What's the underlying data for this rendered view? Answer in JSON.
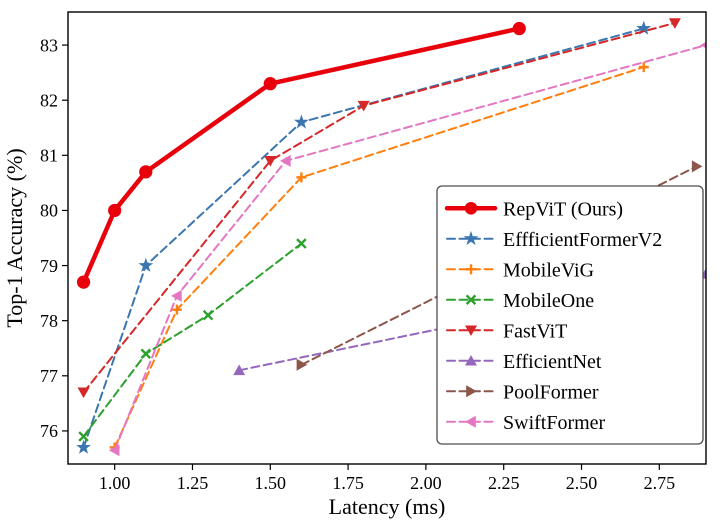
{
  "figure": {
    "xlabel": "Latency (ms)",
    "ylabel": "Top-1 Accuracy (%)"
  },
  "chart_data": {
    "type": "line",
    "title": "",
    "xlabel": "Latency (ms)",
    "ylabel": "Top-1 Accuracy (%)",
    "xlim": [
      0.85,
      2.9
    ],
    "ylim": [
      75.4,
      83.6
    ],
    "xticks": [
      1.0,
      1.25,
      1.5,
      1.75,
      2.0,
      2.25,
      2.5,
      2.75
    ],
    "xtick_labels": [
      "1.00",
      "1.25",
      "1.50",
      "1.75",
      "2.00",
      "2.25",
      "2.50",
      "2.75"
    ],
    "yticks": [
      76,
      77,
      78,
      79,
      80,
      81,
      82,
      83
    ],
    "ytick_labels": [
      "76",
      "77",
      "78",
      "79",
      "80",
      "81",
      "82",
      "83"
    ],
    "grid": false,
    "legend_position": "center-right",
    "series": [
      {
        "name": "RepViT (Ours)",
        "color": "#e8000b",
        "line": "solid",
        "line_width": 4.5,
        "marker": "circle",
        "points": [
          [
            0.9,
            78.7
          ],
          [
            1.0,
            80.0
          ],
          [
            1.1,
            80.7
          ],
          [
            1.5,
            82.3
          ],
          [
            2.3,
            83.3
          ]
        ]
      },
      {
        "name": "EffficientFormerV2",
        "color": "#3b76af",
        "line": "dashed",
        "line_width": 2,
        "marker": "star",
        "points": [
          [
            0.9,
            75.7
          ],
          [
            1.1,
            79.0
          ],
          [
            1.6,
            81.6
          ],
          [
            2.7,
            83.3
          ]
        ]
      },
      {
        "name": "MobileViG",
        "color": "#ff7f0e",
        "line": "dashed",
        "line_width": 2,
        "marker": "plus",
        "points": [
          [
            1.0,
            75.7
          ],
          [
            1.2,
            78.2
          ],
          [
            1.6,
            80.6
          ],
          [
            2.7,
            82.6
          ]
        ]
      },
      {
        "name": "MobileOne",
        "color": "#2ca02c",
        "line": "dashed",
        "line_width": 2,
        "marker": "x",
        "points": [
          [
            0.9,
            75.9
          ],
          [
            1.1,
            77.4
          ],
          [
            1.3,
            78.1
          ],
          [
            1.6,
            79.4
          ]
        ]
      },
      {
        "name": "FastViT",
        "color": "#d62728",
        "line": "dashed",
        "line_width": 2,
        "marker": "triangle-down",
        "points": [
          [
            0.9,
            76.7
          ],
          [
            1.5,
            80.9
          ],
          [
            1.8,
            81.9
          ],
          [
            2.8,
            83.4
          ]
        ]
      },
      {
        "name": "EfficientNet",
        "color": "#9467bd",
        "line": "dashed",
        "line_width": 2,
        "marker": "triangle-up",
        "points": [
          [
            1.4,
            77.1
          ],
          [
            2.9,
            78.85
          ]
        ]
      },
      {
        "name": "PoolFormer",
        "color": "#8c564b",
        "line": "dashed",
        "line_width": 2,
        "marker": "triangle-right",
        "points": [
          [
            1.6,
            77.2
          ],
          [
            2.87,
            80.8
          ]
        ]
      },
      {
        "name": "SwiftFormer",
        "color": "#e377c2",
        "line": "dashed",
        "line_width": 2,
        "marker": "triangle-left",
        "points": [
          [
            1.0,
            75.65
          ],
          [
            1.2,
            78.45
          ],
          [
            1.55,
            80.9
          ],
          [
            2.9,
            83.0
          ]
        ]
      }
    ]
  }
}
